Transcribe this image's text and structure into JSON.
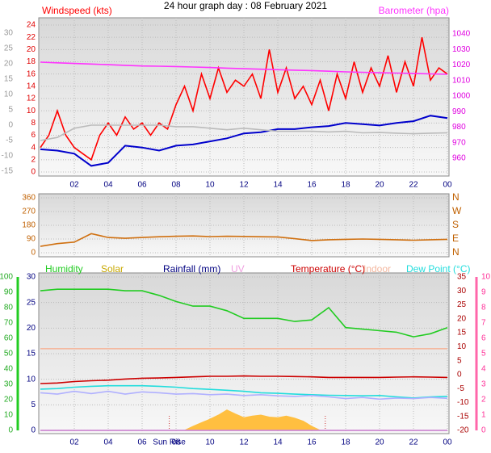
{
  "chart_data": [
    {
      "type": "line",
      "title": "24 hour graph day : 08 February 2021",
      "xlim": [
        0,
        24
      ],
      "x": [
        0,
        1,
        2,
        3,
        4,
        5,
        6,
        7,
        8,
        9,
        10,
        11,
        12,
        13,
        14,
        15,
        16,
        17,
        18,
        19,
        20,
        21,
        22,
        23,
        24
      ],
      "xticks": [
        {
          "value": 2,
          "label": "02"
        },
        {
          "value": 4,
          "label": "04"
        },
        {
          "value": 6,
          "label": "06"
        },
        {
          "value": 8,
          "label": "08"
        },
        10,
        12,
        14,
        16,
        18,
        20,
        22,
        {
          "value": 24,
          "label": "00"
        }
      ],
      "ylim": [
        0,
        24
      ],
      "yticks": [
        0,
        2,
        4,
        6,
        8,
        10,
        12,
        14,
        16,
        18,
        20,
        22,
        24
      ],
      "y2lim": [
        960,
        1040
      ],
      "y2ticks": [
        960,
        970,
        980,
        990,
        1000,
        1010,
        1020,
        1030,
        1040
      ],
      "y3lim": [
        -15,
        30
      ],
      "y3ticks": [
        -15,
        -10,
        -5,
        0,
        5,
        10,
        15,
        20,
        25,
        30
      ],
      "grid": true,
      "series": [
        {
          "name": "Windspeed (kts)",
          "color": "#ff0000",
          "axis": "y",
          "x": [
            0,
            0.5,
            1,
            1.5,
            2,
            2.5,
            3,
            3.5,
            4,
            4.5,
            5,
            5.5,
            6,
            6.5,
            7,
            7.5,
            8,
            8.5,
            9,
            9.5,
            10,
            10.5,
            11,
            11.5,
            12,
            12.5,
            13,
            13.5,
            14,
            14.5,
            15,
            15.5,
            16,
            16.5,
            17,
            17.5,
            18,
            18.5,
            19,
            19.5,
            20,
            20.5,
            21,
            21.5,
            22,
            22.5,
            23,
            23.5,
            24
          ],
          "values": [
            4,
            6,
            10,
            6,
            4,
            3,
            2,
            6,
            8,
            6,
            9,
            7,
            8,
            6,
            8,
            7,
            11,
            14,
            10,
            16,
            12,
            17,
            13,
            15,
            14,
            16,
            12,
            20,
            13,
            17,
            12,
            14,
            11,
            15,
            10,
            16,
            12,
            18,
            13,
            17,
            14,
            19,
            13,
            18,
            14,
            22,
            15,
            17,
            16
          ]
        },
        {
          "color": "#0000cc",
          "axis": "y",
          "values": [
            3.7,
            3.5,
            3,
            1,
            1.5,
            4.3,
            4,
            3.5,
            4.3,
            4.5,
            5,
            5.5,
            6.3,
            6.5,
            7,
            7,
            7.3,
            7.5,
            8,
            7.8,
            7.6,
            8,
            8.3,
            9.2,
            8.8
          ]
        },
        {
          "color": "#bbbbbb",
          "axis": "y3",
          "values": [
            -5,
            -4,
            -1,
            0,
            0,
            0,
            0,
            0,
            -0.5,
            -0.5,
            -1,
            -1.5,
            -1,
            -1.5,
            -2,
            -2,
            -2,
            -2.2,
            -2,
            -2.5,
            -2.4,
            -2.6,
            -2.8,
            -2.6,
            -2.5
          ]
        },
        {
          "name": "Barometer (hpa)",
          "color": "#ff33ff",
          "axis": "y2",
          "values": [
            1021.8,
            1021.4,
            1021,
            1020.6,
            1020.2,
            1019.8,
            1019.4,
            1019.2,
            1019,
            1018.7,
            1018.4,
            1018,
            1017.6,
            1017.3,
            1017,
            1016.7,
            1016.4,
            1016,
            1015.6,
            1015.3,
            1015,
            1014.8,
            1014.6,
            1014.3,
            1014
          ]
        }
      ]
    },
    {
      "type": "line",
      "xlim": [
        0,
        24
      ],
      "x": [
        0,
        1,
        2,
        3,
        4,
        5,
        6,
        7,
        8,
        9,
        10,
        11,
        12,
        13,
        14,
        15,
        16,
        17,
        18,
        19,
        20,
        21,
        22,
        23,
        24
      ],
      "ylim": [
        0,
        360
      ],
      "yticks": [
        0,
        90,
        180,
        270,
        360
      ],
      "y2lim": [
        0,
        360
      ],
      "y2ticks": [
        {
          "value": 0,
          "label": "N"
        },
        {
          "value": 90,
          "label": "E"
        },
        {
          "value": 180,
          "label": "S"
        },
        {
          "value": 270,
          "label": "W"
        },
        {
          "value": 360,
          "label": "N"
        }
      ],
      "grid": true,
      "series": [
        {
          "color": "#d07010",
          "axis": "y",
          "values": [
            42,
            60,
            70,
            125,
            100,
            95,
            100,
            105,
            108,
            110,
            106,
            108,
            107,
            105,
            104,
            92,
            80,
            85,
            88,
            90,
            88,
            85,
            82,
            85,
            88
          ]
        }
      ]
    },
    {
      "type": "line",
      "xlim": [
        0,
        24
      ],
      "x": [
        0,
        1,
        2,
        3,
        4,
        5,
        6,
        7,
        8,
        9,
        10,
        11,
        12,
        13,
        14,
        15,
        16,
        17,
        18,
        19,
        20,
        21,
        22,
        23,
        24
      ],
      "xticks": [
        {
          "value": 2,
          "label": "02"
        },
        {
          "value": 4,
          "label": "04"
        },
        {
          "value": 6,
          "label": "06"
        },
        {
          "value": 8,
          "label": "08"
        },
        10,
        12,
        14,
        16,
        18,
        20,
        22,
        {
          "value": 24,
          "label": "00"
        }
      ],
      "ylim": [
        0,
        30
      ],
      "yticks": [
        0,
        5,
        10,
        15,
        20,
        25,
        30
      ],
      "hlim": [
        0,
        100
      ],
      "hticks": [
        0,
        10,
        20,
        30,
        40,
        50,
        60,
        70,
        80,
        90,
        100
      ],
      "y2lim": [
        -20,
        35
      ],
      "y2ticks": [
        -20,
        -15,
        -10,
        -5,
        0,
        5,
        10,
        15,
        20,
        25,
        30,
        35
      ],
      "uvlim": [
        0,
        10
      ],
      "uvticks": [
        0,
        1,
        2,
        3,
        4,
        5,
        6,
        7,
        8,
        9,
        10
      ],
      "grid": true,
      "sunrise": 7.6,
      "sunrise_label": "Sun Rise",
      "sunset": 16.8,
      "series": [
        {
          "name": "Humidity",
          "color": "#22cc22",
          "axis": "h",
          "values": [
            91,
            92,
            92,
            92,
            92,
            91,
            91,
            88,
            84,
            81,
            81,
            78,
            73,
            73,
            73,
            71,
            72,
            80,
            67,
            66,
            65,
            64,
            61,
            63,
            67
          ]
        },
        {
          "name": "Solar",
          "color": "#c8a800",
          "fill": "#ffbf40",
          "axis": "y",
          "style": "area",
          "x": [
            8.5,
            9,
            9.5,
            10,
            10.5,
            11,
            11.5,
            12,
            12.5,
            13,
            13.5,
            14,
            14.5,
            15,
            15.5,
            16,
            16.5
          ],
          "values": [
            0,
            0.8,
            1.5,
            2.2,
            3,
            4,
            3.2,
            2.5,
            2.8,
            3,
            2.6,
            2.5,
            2.8,
            2.4,
            1.8,
            0.8,
            0
          ]
        },
        {
          "name": "Rainfall (mm)",
          "color": "#000080",
          "axis": "y",
          "x": [
            0,
            24
          ],
          "values": [
            0,
            0
          ]
        },
        {
          "name": "UV",
          "color": "#f0a0e0",
          "axis": "uv",
          "x": [
            0,
            24
          ],
          "values": [
            0,
            0
          ]
        },
        {
          "name": "Temperature (°C)",
          "color": "#cc0000",
          "axis": "y2",
          "values": [
            -3.2,
            -3,
            -2.5,
            -2.2,
            -2,
            -1.6,
            -1.3,
            -1.2,
            -1,
            -0.8,
            -0.6,
            -0.6,
            -0.5,
            -0.6,
            -0.6,
            -0.7,
            -0.8,
            -1,
            -1,
            -1,
            -1,
            -0.9,
            -0.8,
            -0.9,
            -1
          ]
        },
        {
          "name": "Indoor",
          "color": "#f4b8a0",
          "axis": "y2",
          "x": [
            0,
            24
          ],
          "values": [
            9.3,
            9.3
          ]
        },
        {
          "name": "Dew Point (°C)",
          "color": "#22dddd",
          "axis": "y2",
          "values": [
            -5.2,
            -5,
            -4.5,
            -4.2,
            -4,
            -4,
            -4,
            -4.2,
            -4.5,
            -5,
            -5.3,
            -5.6,
            -6,
            -6.5,
            -6.7,
            -7,
            -7.2,
            -7.4,
            -7.5,
            -7.6,
            -7.5,
            -8,
            -8.4,
            -8,
            -7.8
          ]
        },
        {
          "color": "#b0b0ff",
          "axis": "y2",
          "values": [
            -6.5,
            -7,
            -6,
            -6.8,
            -6,
            -7,
            -6.2,
            -6.5,
            -7,
            -6.8,
            -7.2,
            -7,
            -7.5,
            -7.2,
            -7.6,
            -7.8,
            -7.5,
            -8,
            -8.6,
            -8.2,
            -8.8,
            -8.4,
            -8.6,
            -8.2,
            -8.5
          ]
        }
      ]
    }
  ]
}
